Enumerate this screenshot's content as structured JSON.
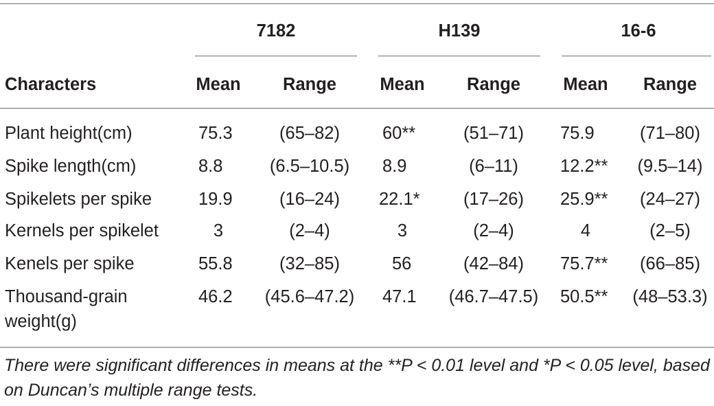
{
  "table": {
    "group_headers": [
      "7182",
      "H139",
      "16-6"
    ],
    "first_column_header": "Characters",
    "sub_headers": [
      "Mean",
      "Range",
      "Mean",
      "Range",
      "Mean",
      "Range"
    ],
    "rows": [
      {
        "label": [
          "Plant height(cm)"
        ],
        "cells": [
          "75.3",
          "(65–82)",
          "60**",
          "(51–71)",
          "75.9",
          "(71–80)"
        ]
      },
      {
        "label": [
          "Spike length(cm)"
        ],
        "cells": [
          "8.8",
          "(6.5–10.5)",
          "8.9",
          "(6–11)",
          "12.2**",
          "(9.5–14)"
        ]
      },
      {
        "label": [
          "Spikelets per spike"
        ],
        "cells": [
          "19.9",
          "(16–24)",
          "22.1*",
          "(17–26)",
          "25.9**",
          "(24–27)"
        ]
      },
      {
        "label": [
          "Kernels per spikelet"
        ],
        "cells": [
          "3",
          "(2–4)",
          "3",
          "(2–4)",
          "4",
          "(2–5)"
        ]
      },
      {
        "label": [
          "Kenels per spike"
        ],
        "cells": [
          "55.8",
          "(32–85)",
          "56",
          "(42–84)",
          "75.7**",
          "(66–85)"
        ]
      },
      {
        "label": [
          "Thousand-grain",
          "weight(g)"
        ],
        "cells": [
          "46.2",
          "(45.6–47.2)",
          "47.1",
          "(46.7–47.5)",
          "50.5**",
          "(48–53.3)"
        ]
      }
    ],
    "footnote": "There were significant differences in means at the **P < 0.01 level and *P < 0.05 level, based on Duncan’s multiple range tests."
  }
}
